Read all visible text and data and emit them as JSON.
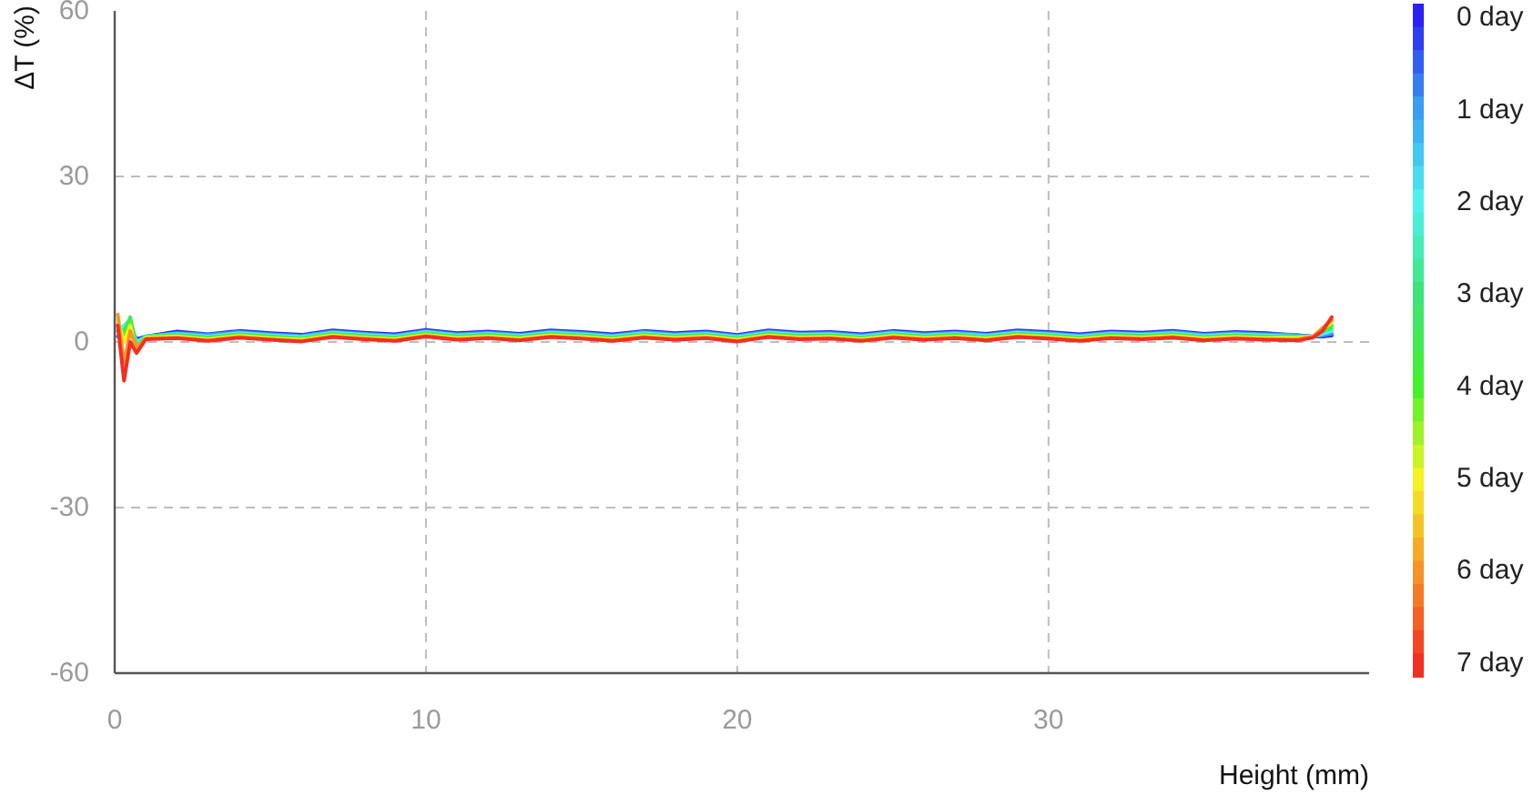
{
  "chart_data": {
    "type": "line",
    "xlabel": "Height (mm)",
    "ylabel": "ΔT (%)",
    "xlim": [
      0,
      40.3
    ],
    "xticks": [
      0,
      10,
      20,
      30
    ],
    "ylim": [
      -60,
      60
    ],
    "yticks": [
      -60,
      -30,
      0,
      30,
      60
    ],
    "grid": true,
    "clim": [
      -0.15,
      7.15
    ],
    "cticks": [
      {
        "value": 0,
        "label": "0 day"
      },
      {
        "value": 1,
        "label": "1 day"
      },
      {
        "value": 2,
        "label": "2 day"
      },
      {
        "value": 3,
        "label": "3 day"
      },
      {
        "value": 4,
        "label": "4 day"
      },
      {
        "value": 5,
        "label": "5 day"
      },
      {
        "value": 6,
        "label": "6 day"
      },
      {
        "value": 7,
        "label": "7 day"
      }
    ],
    "x": [
      0.1,
      0.3,
      0.5,
      0.7,
      1,
      2,
      3,
      4,
      5,
      6,
      7,
      8,
      9,
      10,
      11,
      12,
      13,
      14,
      15,
      16,
      17,
      18,
      19,
      20,
      21,
      22,
      23,
      24,
      25,
      26,
      27,
      28,
      29,
      30,
      31,
      32,
      33,
      34,
      35,
      36,
      37,
      38,
      38.5,
      38.8,
      39.1
    ],
    "series": [
      {
        "color": "#2a22f2",
        "values": [
          1,
          2,
          3,
          0.5,
          1,
          1.9,
          1.4,
          2,
          1.6,
          1.3,
          2.1,
          1.7,
          1.4,
          2.2,
          1.6,
          1.9,
          1.5,
          2.1,
          1.8,
          1.4,
          2,
          1.6,
          1.9,
          1.3,
          2.1,
          1.7,
          1.8,
          1.4,
          2,
          1.6,
          1.9,
          1.5,
          2.1,
          1.8,
          1.4,
          1.9,
          1.7,
          2,
          1.5,
          1.8,
          1.6,
          1.2,
          1,
          1,
          1.2
        ]
      },
      {
        "color": "#3a9ef2",
        "values": [
          1,
          2.5,
          3,
          0,
          1,
          1.6,
          1.3,
          1.8,
          1.4,
          1.1,
          1.9,
          1.5,
          1.2,
          2,
          1.4,
          1.7,
          1.3,
          1.9,
          1.6,
          1.2,
          1.8,
          1.4,
          1.7,
          1.1,
          1.9,
          1.5,
          1.6,
          1.2,
          1.8,
          1.4,
          1.7,
          1.3,
          1.9,
          1.6,
          1.2,
          1.7,
          1.5,
          1.8,
          1.3,
          1.6,
          1.4,
          1.3,
          1,
          1.2,
          1.5
        ]
      },
      {
        "color": "#4ff2ee",
        "values": [
          2,
          3,
          4,
          0,
          1,
          1.5,
          1,
          1.6,
          1.2,
          0.9,
          1.7,
          1.3,
          1,
          1.8,
          1.2,
          1.5,
          1.1,
          1.7,
          1.4,
          1,
          1.6,
          1.2,
          1.5,
          0.9,
          1.7,
          1.3,
          1.4,
          1,
          1.6,
          1.2,
          1.5,
          1.1,
          1.7,
          1.4,
          1,
          1.5,
          1.3,
          1.6,
          1.1,
          1.4,
          1.2,
          1,
          1,
          1.5,
          2
        ]
      },
      {
        "color": "#3ee37a",
        "values": [
          2,
          2,
          4.5,
          -1,
          1,
          1.3,
          0.8,
          1.4,
          1,
          0.7,
          1.5,
          1.1,
          0.8,
          1.6,
          1,
          1.3,
          0.9,
          1.5,
          1.2,
          0.8,
          1.4,
          1,
          1.3,
          0.7,
          1.5,
          1.1,
          1.2,
          0.8,
          1.4,
          1,
          1.3,
          0.9,
          1.5,
          1.2,
          0.8,
          1.3,
          1.1,
          1.4,
          0.9,
          1.2,
          1,
          1,
          1,
          2,
          2.5
        ]
      },
      {
        "color": "#45f22e",
        "values": [
          3,
          1,
          4,
          -1,
          1,
          1.1,
          0.7,
          1.3,
          0.9,
          0.6,
          1.4,
          1,
          0.7,
          1.5,
          0.9,
          1.2,
          0.8,
          1.4,
          1.1,
          0.7,
          1.3,
          0.9,
          1.2,
          0.6,
          1.4,
          1,
          1.1,
          0.7,
          1.3,
          0.9,
          1.2,
          0.8,
          1.4,
          1.1,
          0.7,
          1.2,
          1,
          1.3,
          0.8,
          1.1,
          0.9,
          1,
          1,
          2,
          3
        ]
      },
      {
        "color": "#f4f423",
        "values": [
          4,
          0,
          3,
          -2,
          0.8,
          1,
          0.5,
          1.1,
          0.7,
          0.4,
          1.2,
          0.8,
          0.5,
          1.3,
          0.7,
          1,
          0.6,
          1.2,
          0.9,
          0.5,
          1.1,
          0.7,
          1,
          0.4,
          1.2,
          0.8,
          0.9,
          0.5,
          1.1,
          0.7,
          1,
          0.6,
          1.2,
          0.9,
          0.5,
          1,
          0.8,
          1.1,
          0.6,
          0.9,
          0.7,
          0.8,
          1,
          2.5,
          3.5
        ]
      },
      {
        "color": "#f4962a",
        "values": [
          5,
          -4,
          2,
          -1,
          0.6,
          0.8,
          0.3,
          0.9,
          0.5,
          0.2,
          1,
          0.6,
          0.3,
          1.1,
          0.5,
          0.8,
          0.4,
          1,
          0.7,
          0.3,
          0.9,
          0.5,
          0.8,
          0.2,
          1,
          0.6,
          0.7,
          0.3,
          0.9,
          0.5,
          0.8,
          0.4,
          1,
          0.7,
          0.3,
          0.8,
          0.6,
          0.9,
          0.4,
          0.7,
          0.5,
          0.5,
          1,
          2.5,
          4
        ]
      },
      {
        "color": "#f42e22",
        "values": [
          3,
          -7,
          0,
          -2,
          0.5,
          0.7,
          0.2,
          0.8,
          0.4,
          0.1,
          0.9,
          0.5,
          0.2,
          1,
          0.4,
          0.7,
          0.3,
          0.9,
          0.6,
          0.2,
          0.8,
          0.4,
          0.7,
          0.1,
          0.9,
          0.5,
          0.6,
          0.2,
          0.8,
          0.4,
          0.7,
          0.3,
          0.9,
          0.6,
          0.2,
          0.7,
          0.5,
          0.8,
          0.3,
          0.6,
          0.4,
          0.3,
          0.8,
          2,
          4.5
        ]
      }
    ]
  }
}
